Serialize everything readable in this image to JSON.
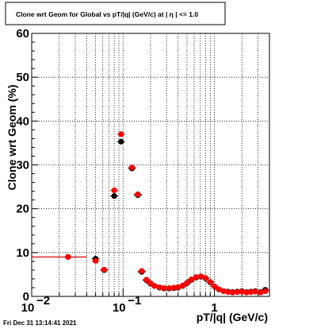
{
  "chart_data": {
    "type": "scatter",
    "title": "Clone wrt Geom for Global vs pT/|q| (GeV/c) at |  η | <= 1.0",
    "xlabel": "pT/|q| (GeV/c)",
    "ylabel": "Clone wrt Geom (%)",
    "x_scale": "log",
    "xlim": [
      0.01,
      4.0
    ],
    "ylim": [
      0,
      60
    ],
    "grid": true,
    "x_ticks": [
      {
        "value": 0.01,
        "label": "10",
        "exp": "−2"
      },
      {
        "value": 0.1,
        "label": "10",
        "exp": "−1"
      },
      {
        "value": 1,
        "label": "1",
        "exp": ""
      }
    ],
    "y_ticks": [
      0,
      10,
      20,
      30,
      40,
      50,
      60
    ],
    "series": [
      {
        "color": "#000000",
        "points": [
          {
            "x": 0.025,
            "y": 9.0,
            "xerr": [
              0.01,
              0.04
            ]
          },
          {
            "x": 0.05,
            "y": 8.6
          },
          {
            "x": 0.062,
            "y": 6.0
          },
          {
            "x": 0.08,
            "y": 22.9
          },
          {
            "x": 0.095,
            "y": 35.3
          },
          {
            "x": 0.125,
            "y": 29.2
          },
          {
            "x": 0.145,
            "y": 23.1
          },
          {
            "x": 0.16,
            "y": 5.6
          },
          {
            "x": 0.18,
            "y": 3.7
          },
          {
            "x": 0.2,
            "y": 2.9
          },
          {
            "x": 0.22,
            "y": 2.4
          },
          {
            "x": 0.25,
            "y": 2.0
          },
          {
            "x": 0.28,
            "y": 1.8
          },
          {
            "x": 0.32,
            "y": 1.8
          },
          {
            "x": 0.36,
            "y": 1.9
          },
          {
            "x": 0.4,
            "y": 2.0
          },
          {
            "x": 0.45,
            "y": 2.4
          },
          {
            "x": 0.5,
            "y": 3.0
          },
          {
            "x": 0.56,
            "y": 3.8
          },
          {
            "x": 0.63,
            "y": 4.3
          },
          {
            "x": 0.71,
            "y": 4.5
          },
          {
            "x": 0.8,
            "y": 4.1
          },
          {
            "x": 0.9,
            "y": 3.2
          },
          {
            "x": 1.0,
            "y": 2.3
          },
          {
            "x": 1.12,
            "y": 1.6
          },
          {
            "x": 1.26,
            "y": 1.2
          },
          {
            "x": 1.41,
            "y": 1.1
          },
          {
            "x": 1.58,
            "y": 1.0
          },
          {
            "x": 1.78,
            "y": 1.1
          },
          {
            "x": 2.0,
            "y": 1.2
          },
          {
            "x": 2.24,
            "y": 1.0
          },
          {
            "x": 2.5,
            "y": 1.1
          },
          {
            "x": 2.8,
            "y": 1.2
          },
          {
            "x": 3.2,
            "y": 1.0
          },
          {
            "x": 3.6,
            "y": 1.5
          }
        ]
      },
      {
        "color": "#ff0000",
        "points": [
          {
            "x": 0.025,
            "y": 9.0,
            "xerr": [
              0.01,
              0.04
            ]
          },
          {
            "x": 0.05,
            "y": 8.1
          },
          {
            "x": 0.062,
            "y": 6.1
          },
          {
            "x": 0.08,
            "y": 24.2
          },
          {
            "x": 0.095,
            "y": 37.0
          },
          {
            "x": 0.125,
            "y": 29.4
          },
          {
            "x": 0.145,
            "y": 23.3
          },
          {
            "x": 0.16,
            "y": 5.8
          },
          {
            "x": 0.18,
            "y": 3.8
          },
          {
            "x": 0.2,
            "y": 3.0
          },
          {
            "x": 0.22,
            "y": 2.4
          },
          {
            "x": 0.25,
            "y": 2.1
          },
          {
            "x": 0.28,
            "y": 1.9
          },
          {
            "x": 0.32,
            "y": 1.9
          },
          {
            "x": 0.36,
            "y": 2.0
          },
          {
            "x": 0.4,
            "y": 2.1
          },
          {
            "x": 0.45,
            "y": 2.5
          },
          {
            "x": 0.5,
            "y": 3.1
          },
          {
            "x": 0.56,
            "y": 3.9
          },
          {
            "x": 0.63,
            "y": 4.4
          },
          {
            "x": 0.71,
            "y": 4.6
          },
          {
            "x": 0.8,
            "y": 4.2
          },
          {
            "x": 0.9,
            "y": 3.3
          },
          {
            "x": 1.0,
            "y": 2.3
          },
          {
            "x": 1.12,
            "y": 1.6
          },
          {
            "x": 1.26,
            "y": 1.2
          },
          {
            "x": 1.41,
            "y": 1.0
          },
          {
            "x": 1.58,
            "y": 0.9
          },
          {
            "x": 1.78,
            "y": 1.0
          },
          {
            "x": 2.0,
            "y": 1.1
          },
          {
            "x": 2.24,
            "y": 0.9
          },
          {
            "x": 2.5,
            "y": 1.0
          },
          {
            "x": 2.8,
            "y": 1.1
          },
          {
            "x": 3.2,
            "y": 0.9
          },
          {
            "x": 3.6,
            "y": 1.2
          }
        ]
      }
    ]
  },
  "footer": {
    "timestamp": "Fri Dec 31 13:14:41 2021"
  }
}
